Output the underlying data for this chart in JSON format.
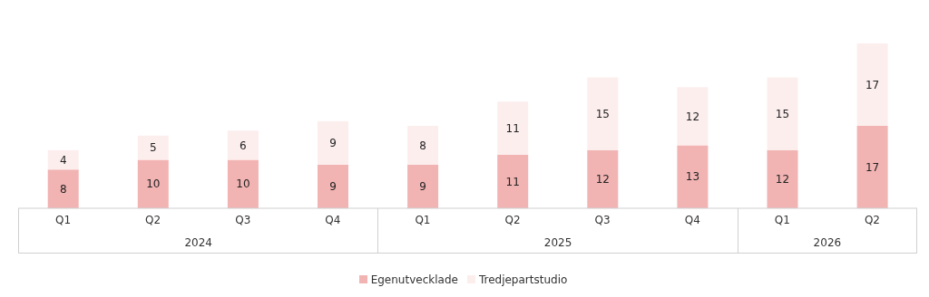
{
  "chart_data": {
    "type": "bar",
    "stacked": true,
    "data_labels": true,
    "legend": "bottom",
    "grid": false,
    "categories": [
      "Q1",
      "Q2",
      "Q3",
      "Q4",
      "Q1",
      "Q2",
      "Q3",
      "Q4",
      "Q1",
      "Q2"
    ],
    "annotations": [
      "2024",
      "2025",
      "2026"
    ],
    "series": [
      {
        "name": "Egenutvecklade",
        "color": "#f2b3b3",
        "values": [
          8,
          10,
          10,
          9,
          9,
          11,
          12,
          13,
          12,
          17
        ]
      },
      {
        "name": "Tredjepartstudio",
        "color": "#fdeeee",
        "values": [
          4,
          5,
          6,
          9,
          8,
          11,
          15,
          12,
          15,
          17
        ]
      }
    ]
  }
}
